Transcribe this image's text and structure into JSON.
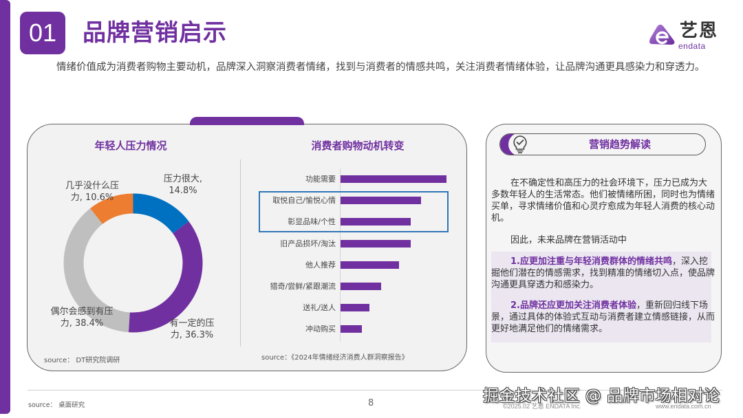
{
  "header": {
    "section_number": "01",
    "title": "品牌营销启示",
    "logo_cn": "艺恩",
    "logo_en": "endata"
  },
  "intro": "情绪价值成为消费者购物主要动机，品牌深入洞察消费者情绪，找到与消费者的情感共鸣，关注消费者情绪体验，让品牌沟通更具感染力和穿透力。",
  "left_card": {
    "donut": {
      "title": "年轻人压力情况",
      "labels": [
        {
          "line1": "压力很大,",
          "line2": "14.8%"
        },
        {
          "line1": "有一定的压",
          "line2": "力, 36.3%"
        },
        {
          "line1": "偶尔会感到有压",
          "line2": "力, 38.4%"
        },
        {
          "line1": "几乎没什么压",
          "line2": "力, 10.6%"
        }
      ],
      "source": "source： DT研究院调研"
    },
    "bars": {
      "title": "消费者购物动机转变",
      "source": "source：《2024年情绪经济消费人群洞察报告》"
    }
  },
  "right_card": {
    "heading": "营销趋势解读",
    "icon": "lightbulb-check-icon",
    "para1": "在不确定性和高压力的社会环境下，压力已成为大多数年轻人的生活常态。他们被情绪所困，同时也为情绪买单，寻求情绪价值和心灵疗愈成为年轻人消费的核心动机。",
    "para2": "因此，未来品牌在营销活动中",
    "point1_em": "1.应更加注重与年轻消费群体的情绪共鸣",
    "point1_rest": "，深入挖掘他们潜在的情感需求，找到精准的情绪切入点，使品牌沟通更具穿透力和感染力。",
    "point2_em": "2.品牌还应更加关注消费者体验",
    "point2_rest": "，重新回归线下场景，通过具体的体验式互动与消费者建立情感链接，从而更好地满足他们的情绪需求。"
  },
  "footer": {
    "source": "source： 桌面研究",
    "page_number": "8",
    "copyright": "©2025.02  艺恩 ENDATA Inc.",
    "website": "www.endata.com.cn",
    "watermark": "掘金技术社区 @ 品牌市场相对论"
  },
  "colors": {
    "brand_purple": "#7030a0",
    "blue": "#0070c0",
    "orange": "#ed7d31",
    "gray": "#bfbfbf",
    "highlight_border": "#2e75b6"
  },
  "chart_data": [
    {
      "type": "pie",
      "title": "年轻人压力情况",
      "categories": [
        "压力很大",
        "有一定的压力",
        "偶尔会感到有压力",
        "几乎没什么压力"
      ],
      "values": [
        14.8,
        36.3,
        38.4,
        10.6
      ],
      "unit": "%",
      "colors": [
        "#0070c0",
        "#7030a0",
        "#bfbfbf",
        "#ed7d31"
      ],
      "donut": true,
      "source": "DT研究院调研"
    },
    {
      "type": "bar",
      "orientation": "horizontal",
      "title": "消费者购物动机转变",
      "categories": [
        "功能需要",
        "取悦自己/愉悦心情",
        "彰显品味/个性",
        "旧产品损坏/淘汰",
        "他人推荐",
        "猎奇/尝鲜/紧跟潮流",
        "送礼/送人",
        "冲动购买"
      ],
      "values": [
        100,
        76,
        66,
        66,
        55,
        38,
        27,
        20
      ],
      "value_note": "relative bar length (no axis values shown); 功能需要 = 100",
      "highlighted": [
        "取悦自己/愉悦心情",
        "彰显品味/个性"
      ],
      "xlabel": "",
      "ylabel": "",
      "grid": false,
      "source": "《2024年情绪经济消费人群洞察报告》"
    }
  ]
}
